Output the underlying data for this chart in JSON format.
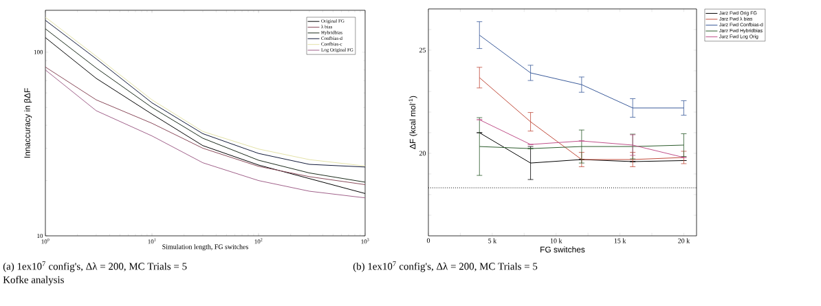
{
  "chart_data": [
    {
      "type": "line",
      "xlabel": "Simulation length, FG switches",
      "ylabel": "Innaccuracy in βΔF",
      "log": "xy",
      "xlim": [
        1,
        1000
      ],
      "ylim": [
        10,
        169
      ],
      "xticks": [
        {
          "value": 1,
          "label": "10$^{0}$"
        },
        {
          "value": 10,
          "label": "10$^{1}$"
        },
        {
          "value": 100,
          "label": "10$^{2}$"
        },
        {
          "value": 1000,
          "label": "10$^{3}$"
        }
      ],
      "yticks": [
        10,
        100
      ],
      "legend": "top right",
      "x": [
        1,
        3,
        10,
        30,
        100,
        300,
        1000
      ],
      "series": [
        {
          "name": "Original FG",
          "color": "#000000",
          "values": [
            120,
            72,
            46,
            31,
            24.3,
            20.5,
            17
          ]
        },
        {
          "name": "λ bias",
          "color": "#8a4a5a",
          "values": [
            83,
            55,
            41,
            30,
            23.9,
            21,
            19
          ]
        },
        {
          "name": "Hybridbias",
          "color": "#1a2a1a",
          "values": [
            134,
            82,
            50,
            34,
            25.8,
            22,
            19.6
          ]
        },
        {
          "name": "Confbias-d",
          "color": "#101838",
          "values": [
            149,
            92,
            53,
            36,
            28.1,
            24.5,
            23.7
          ]
        },
        {
          "name": "Confbias-c",
          "color": "#e4e2a8",
          "values": [
            155,
            95,
            55,
            37,
            29.7,
            26,
            24
          ]
        },
        {
          "name": "Log Original FG",
          "color": "#a0608a",
          "values": [
            80,
            48,
            35,
            25,
            20,
            17.5,
            16.1
          ]
        }
      ],
      "annotations": [
        "(a) 1ex10$^{7}$ config's, Δλ = 200, MC Trials = 5",
        "Kofke analysis"
      ]
    },
    {
      "type": "line",
      "xlabel": "FG switches",
      "ylabel": "ΔF (kcal mol$^{-1}$)",
      "xlim": [
        0,
        21000
      ],
      "ylim": [
        16,
        27
      ],
      "xticks": [
        0,
        {
          "value": 2500,
          "label": null
        },
        {
          "value": 5000,
          "label": "5 k"
        },
        {
          "value": 7500,
          "label": null
        },
        {
          "value": 10000,
          "label": "10 k"
        },
        {
          "value": 12500,
          "label": null
        },
        {
          "value": 15000,
          "label": "15 k"
        },
        {
          "value": 17500,
          "label": null
        },
        {
          "value": 20000,
          "label": "20 k"
        }
      ],
      "yticks": [
        {
          "value": 17,
          "label": null
        },
        {
          "value": 18,
          "label": null
        },
        {
          "value": 19,
          "label": null
        },
        20,
        {
          "value": 21,
          "label": null
        },
        {
          "value": 22,
          "label": null
        },
        {
          "value": 23,
          "label": null
        },
        {
          "value": 24,
          "label": null
        },
        25,
        {
          "value": 26,
          "label": null
        }
      ],
      "legend": "right",
      "x": [
        4000,
        8000,
        12000,
        16000,
        20000
      ],
      "series": [
        {
          "name": "Jarz Fwd Orig FG",
          "color": "#000000",
          "values": [
            21.0,
            19.53,
            19.7,
            19.6,
            19.65
          ],
          "errors": [
            null,
            0.8,
            null,
            null,
            null
          ]
        },
        {
          "name": "Jarz Fwd λ  bias",
          "color": "#c04a3a",
          "values": [
            23.67,
            21.53,
            19.7,
            19.7,
            19.8
          ],
          "errors": [
            0.5,
            0.45,
            0.35,
            0.35,
            0.3
          ]
        },
        {
          "name": "Jarz Fwd Confbias-d",
          "color": "#3a5a9a",
          "values": [
            25.73,
            23.9,
            23.33,
            22.2,
            22.2
          ],
          "errors": [
            0.65,
            0.37,
            0.37,
            0.45,
            0.35
          ]
        },
        {
          "name": "Jarz Fwd Hybridbias",
          "color": "#2a5a2a",
          "values": [
            20.33,
            20.23,
            20.33,
            20.33,
            20.4
          ],
          "errors": [
            1.4,
            null,
            0.8,
            0.6,
            0.55
          ]
        },
        {
          "name": "Jarz Fwd Log Orig",
          "color": "#c0508a",
          "values": [
            21.63,
            20.43,
            20.6,
            20.4,
            19.8
          ],
          "errors": [
            null,
            null,
            null,
            0.5,
            null
          ]
        }
      ],
      "ref_lines": [
        {
          "axis": "y",
          "value": 18.33,
          "color": "#000000",
          "line_style": "dotted"
        }
      ],
      "annotations": [
        "(b) 1ex10$^{7}$ config's, Δλ = 200, MC Trials = 5"
      ]
    }
  ]
}
